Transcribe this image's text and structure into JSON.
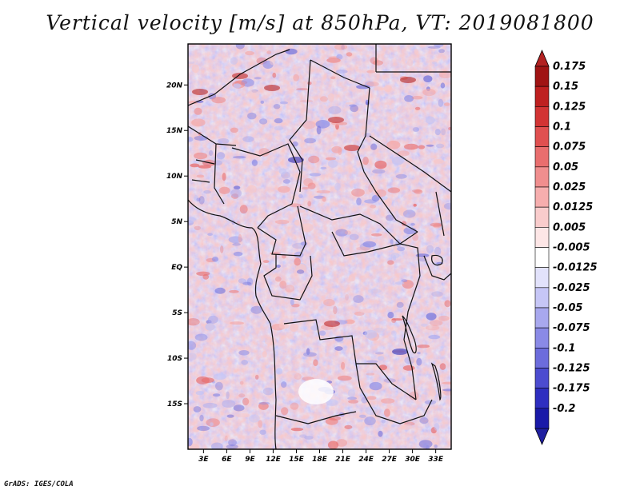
{
  "title": "Vertical velocity [m/s] at 850hPa, VT: 2019081800",
  "credit": "GrADS: IGES/COLA",
  "chart_data": {
    "type": "heatmap",
    "title": "Vertical velocity [m/s] at 850hPa, VT: 2019081800",
    "variable": "Vertical velocity",
    "units": "m/s",
    "level": "850hPa",
    "valid_time": "2019081800",
    "xlim": [
      1,
      35
    ],
    "ylim": [
      -20,
      24.5
    ],
    "x_ticks": [
      {
        "value": 3,
        "label": "3E"
      },
      {
        "value": 6,
        "label": "6E"
      },
      {
        "value": 9,
        "label": "9E"
      },
      {
        "value": 12,
        "label": "12E"
      },
      {
        "value": 15,
        "label": "15E"
      },
      {
        "value": 18,
        "label": "18E"
      },
      {
        "value": 21,
        "label": "21E"
      },
      {
        "value": 24,
        "label": "24E"
      },
      {
        "value": 27,
        "label": "27E"
      },
      {
        "value": 30,
        "label": "30E"
      },
      {
        "value": 33,
        "label": "33E"
      }
    ],
    "y_ticks": [
      {
        "value": 20,
        "label": "20N"
      },
      {
        "value": 15,
        "label": "15N"
      },
      {
        "value": 10,
        "label": "10N"
      },
      {
        "value": 5,
        "label": "5N"
      },
      {
        "value": 0,
        "label": "EQ"
      },
      {
        "value": -5,
        "label": "5S"
      },
      {
        "value": -10,
        "label": "10S"
      },
      {
        "value": -15,
        "label": "15S"
      }
    ],
    "colorbar": {
      "levels": [
        {
          "label": "0.175",
          "color": "#a01414"
        },
        {
          "label": "0.15",
          "color": "#be2020"
        },
        {
          "label": "0.125",
          "color": "#d23434"
        },
        {
          "label": "0.1",
          "color": "#e05050"
        },
        {
          "label": "0.075",
          "color": "#e96e6e"
        },
        {
          "label": "0.05",
          "color": "#f08e8e"
        },
        {
          "label": "0.025",
          "color": "#f6aeae"
        },
        {
          "label": "0.0125",
          "color": "#f9cccc"
        },
        {
          "label": "0.005",
          "color": "#fde6e6"
        },
        {
          "label": "-0.005",
          "color": "#ffffff"
        },
        {
          "label": "-0.0125",
          "color": "#e2e2fb"
        },
        {
          "label": "-0.025",
          "color": "#c6c6f6"
        },
        {
          "label": "-0.05",
          "color": "#a8a8ee"
        },
        {
          "label": "-0.075",
          "color": "#8a8ae6"
        },
        {
          "label": "-0.1",
          "color": "#6c6cdc"
        },
        {
          "label": "-0.125",
          "color": "#4c4cd0"
        },
        {
          "label": "-0.175",
          "color": "#2e2ec0"
        },
        {
          "label": "-0.2",
          "color": "#1a1aa8"
        }
      ],
      "top_arrow_color": "#b22222",
      "bottom_arrow_color": "#2020a0"
    },
    "grid": false,
    "legend_position": "right"
  }
}
